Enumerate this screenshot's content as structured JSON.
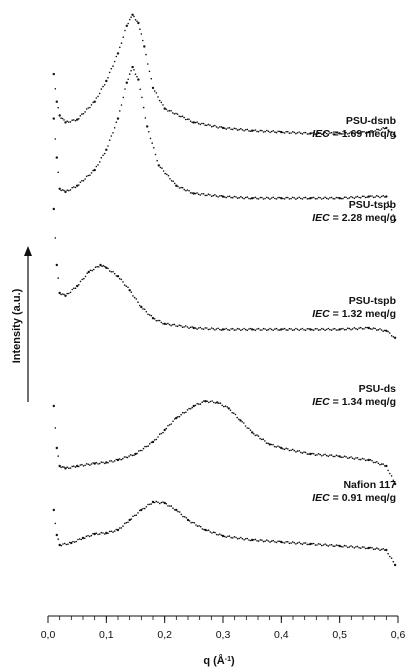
{
  "chart_data": {
    "type": "scatter",
    "xlabel": "q (Å⁻¹)",
    "xlabel_parts": {
      "main": "q (Å",
      "sup": "-1",
      "end": ")"
    },
    "ylabel": "Intensity (a.u.)",
    "xlim": [
      0.0,
      0.6
    ],
    "x_ticks": [
      "0,0",
      "0,1",
      "0,2",
      "0,3",
      "0,4",
      "0,5",
      "0,6"
    ],
    "y_ticks": false,
    "grid": false,
    "legend": "none",
    "colors": {
      "points": "#111111",
      "axis": "#111111"
    },
    "series": [
      {
        "name": "PSU-dsnb",
        "iec_label": "IEC",
        "iec_value": "= 1.69 meq/g",
        "points": [
          [
            0.01,
            0.55
          ],
          [
            0.015,
            0.35
          ],
          [
            0.02,
            0.25
          ],
          [
            0.03,
            0.2
          ],
          [
            0.05,
            0.22
          ],
          [
            0.08,
            0.35
          ],
          [
            0.1,
            0.5
          ],
          [
            0.12,
            0.7
          ],
          [
            0.135,
            0.9
          ],
          [
            0.145,
            0.98
          ],
          [
            0.155,
            0.92
          ],
          [
            0.165,
            0.75
          ],
          [
            0.18,
            0.45
          ],
          [
            0.2,
            0.3
          ],
          [
            0.25,
            0.2
          ],
          [
            0.3,
            0.16
          ],
          [
            0.35,
            0.14
          ],
          [
            0.4,
            0.13
          ],
          [
            0.45,
            0.12
          ],
          [
            0.5,
            0.12
          ],
          [
            0.55,
            0.13
          ],
          [
            0.58,
            0.16
          ],
          [
            0.595,
            0.1
          ]
        ]
      },
      {
        "name": "PSU-tspb",
        "iec_label": "IEC",
        "iec_value": "= 2.28 meq/g",
        "points": [
          [
            0.01,
            0.65
          ],
          [
            0.015,
            0.4
          ],
          [
            0.02,
            0.2
          ],
          [
            0.03,
            0.18
          ],
          [
            0.05,
            0.22
          ],
          [
            0.08,
            0.32
          ],
          [
            0.1,
            0.45
          ],
          [
            0.12,
            0.65
          ],
          [
            0.135,
            0.88
          ],
          [
            0.145,
            0.98
          ],
          [
            0.155,
            0.9
          ],
          [
            0.17,
            0.6
          ],
          [
            0.19,
            0.35
          ],
          [
            0.22,
            0.22
          ],
          [
            0.25,
            0.17
          ],
          [
            0.3,
            0.15
          ],
          [
            0.35,
            0.14
          ],
          [
            0.4,
            0.14
          ],
          [
            0.45,
            0.14
          ],
          [
            0.5,
            0.14
          ],
          [
            0.55,
            0.15
          ],
          [
            0.58,
            0.15
          ],
          [
            0.595,
            0.0
          ]
        ]
      },
      {
        "name": "PSU-tspb",
        "iec_label": "IEC",
        "iec_value": "= 1.32 meq/g",
        "points": [
          [
            0.01,
            0.9
          ],
          [
            0.015,
            0.5
          ],
          [
            0.02,
            0.3
          ],
          [
            0.03,
            0.28
          ],
          [
            0.05,
            0.35
          ],
          [
            0.07,
            0.45
          ],
          [
            0.09,
            0.5
          ],
          [
            0.1,
            0.48
          ],
          [
            0.12,
            0.42
          ],
          [
            0.14,
            0.32
          ],
          [
            0.16,
            0.2
          ],
          [
            0.18,
            0.12
          ],
          [
            0.2,
            0.08
          ],
          [
            0.25,
            0.05
          ],
          [
            0.3,
            0.04
          ],
          [
            0.35,
            0.04
          ],
          [
            0.4,
            0.04
          ],
          [
            0.45,
            0.04
          ],
          [
            0.5,
            0.04
          ],
          [
            0.55,
            0.05
          ],
          [
            0.58,
            0.03
          ],
          [
            0.595,
            -0.02
          ]
        ]
      },
      {
        "name": "PSU-ds",
        "iec_label": "IEC",
        "iec_value": "= 1.34 meq/g",
        "points": [
          [
            0.01,
            0.7
          ],
          [
            0.015,
            0.35
          ],
          [
            0.02,
            0.2
          ],
          [
            0.03,
            0.18
          ],
          [
            0.05,
            0.2
          ],
          [
            0.08,
            0.22
          ],
          [
            0.1,
            0.23
          ],
          [
            0.12,
            0.25
          ],
          [
            0.15,
            0.3
          ],
          [
            0.18,
            0.4
          ],
          [
            0.2,
            0.5
          ],
          [
            0.22,
            0.6
          ],
          [
            0.25,
            0.7
          ],
          [
            0.27,
            0.74
          ],
          [
            0.29,
            0.73
          ],
          [
            0.31,
            0.68
          ],
          [
            0.33,
            0.58
          ],
          [
            0.35,
            0.48
          ],
          [
            0.38,
            0.38
          ],
          [
            0.4,
            0.35
          ],
          [
            0.45,
            0.3
          ],
          [
            0.5,
            0.28
          ],
          [
            0.55,
            0.25
          ],
          [
            0.58,
            0.2
          ],
          [
            0.595,
            0.05
          ]
        ]
      },
      {
        "name": "Nafion 117",
        "iec_label": "IEC",
        "iec_value": "= 0.91 meq/g",
        "points": [
          [
            0.01,
            0.6
          ],
          [
            0.015,
            0.35
          ],
          [
            0.02,
            0.25
          ],
          [
            0.04,
            0.27
          ],
          [
            0.06,
            0.32
          ],
          [
            0.08,
            0.36
          ],
          [
            0.1,
            0.37
          ],
          [
            0.12,
            0.4
          ],
          [
            0.14,
            0.5
          ],
          [
            0.16,
            0.6
          ],
          [
            0.18,
            0.68
          ],
          [
            0.2,
            0.67
          ],
          [
            0.22,
            0.6
          ],
          [
            0.24,
            0.5
          ],
          [
            0.27,
            0.4
          ],
          [
            0.3,
            0.34
          ],
          [
            0.35,
            0.3
          ],
          [
            0.4,
            0.28
          ],
          [
            0.45,
            0.26
          ],
          [
            0.5,
            0.24
          ],
          [
            0.55,
            0.22
          ],
          [
            0.58,
            0.2
          ],
          [
            0.595,
            0.05
          ]
        ]
      }
    ]
  }
}
